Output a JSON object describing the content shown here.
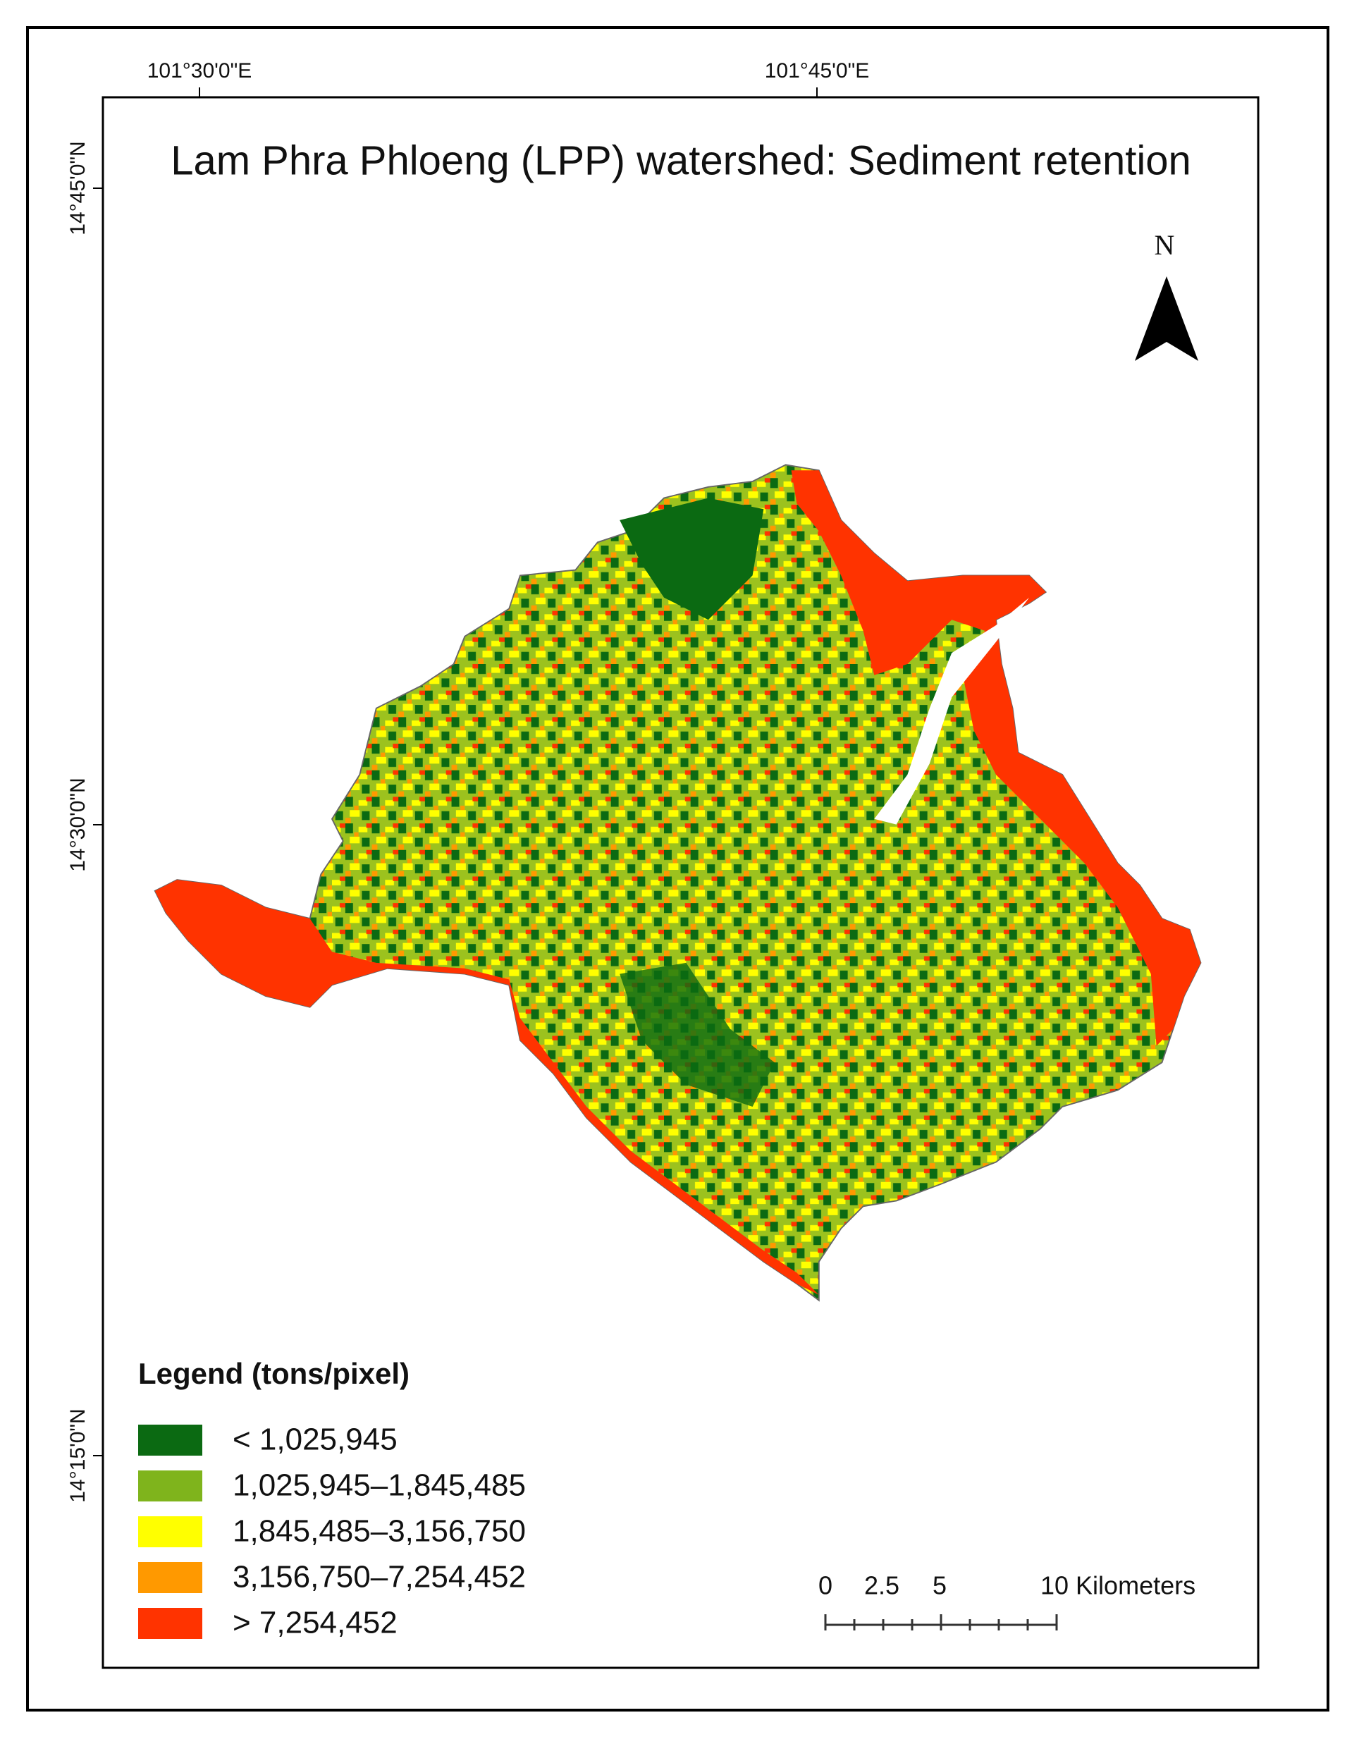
{
  "map": {
    "title": "Lam Phra Phloeng (LPP) watershed: Sediment retention",
    "longitude_labels": [
      "101°30'0\"E",
      "101°45'0\"E"
    ],
    "latitude_labels": [
      "14°45'0\"N",
      "14°30'0\"N",
      "14°15'0\"N"
    ],
    "north_label": "N",
    "legend": {
      "title": "Legend (tons/pixel)",
      "items": [
        {
          "label": "< 1,025,945",
          "color": "#0b6a12"
        },
        {
          "label": "1,025,945–1,845,485",
          "color": "#7fb41c"
        },
        {
          "label": "1,845,485–3,156,750",
          "color": "#ffff00"
        },
        {
          "label": "3,156,750–7,254,452",
          "color": "#ff9900"
        },
        {
          "label": "> 7,254,452",
          "color": "#ff3300"
        }
      ]
    },
    "scale_bar": {
      "labels": [
        "0",
        "2.5",
        "5",
        "10 Kilometers"
      ]
    }
  }
}
